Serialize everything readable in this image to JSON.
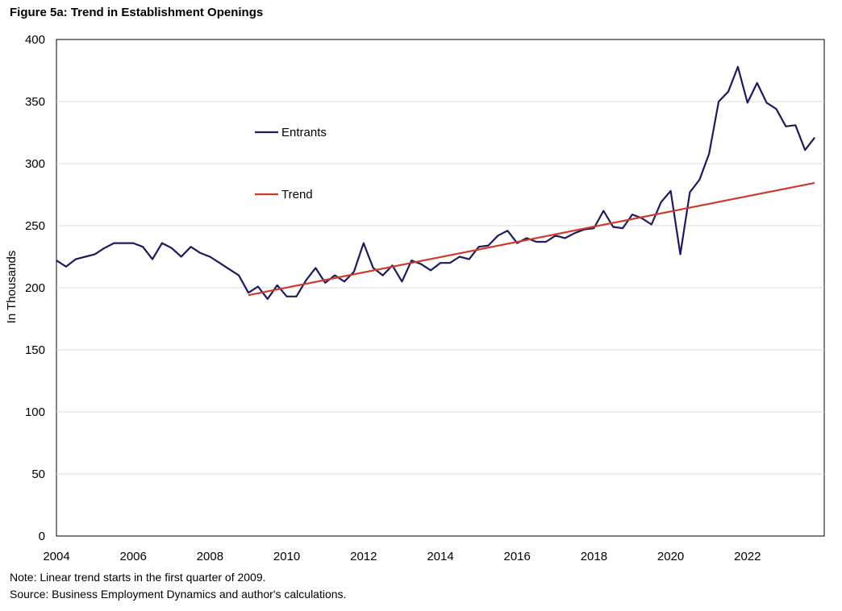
{
  "figure": {
    "title": "Figure 5a: Trend in Establishment Openings",
    "note": "Note: Linear trend starts in the first quarter of 2009.",
    "source": "Source: Business Employment Dynamics and author's calculations."
  },
  "chart_data": {
    "type": "line",
    "title": "Figure 5a: Trend in Establishment Openings",
    "xlabel": "",
    "ylabel": "In Thousands",
    "xlim": [
      2004,
      2023.75
    ],
    "ylim": [
      0,
      400
    ],
    "y_ticks": [
      0,
      50,
      100,
      150,
      200,
      250,
      300,
      350,
      400
    ],
    "x_ticks": [
      2004,
      2006,
      2008,
      2010,
      2012,
      2014,
      2016,
      2018,
      2020,
      2022
    ],
    "grid": true,
    "legend_position": "upper-left inside plot",
    "series": [
      {
        "name": "Entrants",
        "color": "#1f1a5c",
        "x": [
          2004,
          2004.25,
          2004.5,
          2004.75,
          2005,
          2005.25,
          2005.5,
          2005.75,
          2006,
          2006.25,
          2006.5,
          2006.75,
          2007,
          2007.25,
          2007.5,
          2007.75,
          2008,
          2008.25,
          2008.5,
          2008.75,
          2009,
          2009.25,
          2009.5,
          2009.75,
          2010,
          2010.25,
          2010.5,
          2010.75,
          2011,
          2011.25,
          2011.5,
          2011.75,
          2012,
          2012.25,
          2012.5,
          2012.75,
          2013,
          2013.25,
          2013.5,
          2013.75,
          2014,
          2014.25,
          2014.5,
          2014.75,
          2015,
          2015.25,
          2015.5,
          2015.75,
          2016,
          2016.25,
          2016.5,
          2016.75,
          2017,
          2017.25,
          2017.5,
          2017.75,
          2018,
          2018.25,
          2018.5,
          2018.75,
          2019,
          2019.25,
          2019.5,
          2019.75,
          2020,
          2020.25,
          2020.5,
          2020.75,
          2021,
          2021.25,
          2021.5,
          2021.75,
          2022,
          2022.25,
          2022.5,
          2022.75,
          2023,
          2023.25,
          2023.5,
          2023.75
        ],
        "values": [
          222,
          217,
          223,
          225,
          227,
          232,
          236,
          236,
          236,
          233,
          223,
          236,
          232,
          225,
          233,
          228,
          225,
          220,
          215,
          210,
          196,
          201,
          191,
          202,
          193,
          193,
          206,
          216,
          204,
          210,
          205,
          213,
          236,
          216,
          210,
          218,
          205,
          222,
          219,
          214,
          220,
          220,
          225,
          223,
          233,
          234,
          242,
          246,
          236,
          240,
          237,
          237,
          242,
          240,
          244,
          247,
          248,
          262,
          249,
          248,
          259,
          256,
          251,
          269,
          278,
          227,
          277,
          287,
          308,
          350,
          358,
          378,
          349,
          365,
          349,
          344,
          330,
          331,
          311,
          321
        ]
      },
      {
        "name": "Trend",
        "color": "#cc3b2c",
        "x": [
          2009,
          2023.75
        ],
        "values": [
          194,
          284.5
        ]
      }
    ]
  }
}
